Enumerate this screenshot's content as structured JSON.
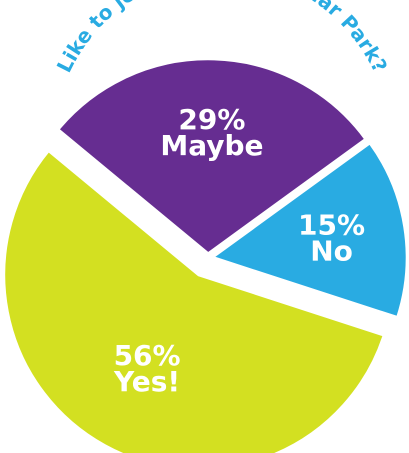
{
  "chart_data": {
    "type": "pie",
    "title": "Like to join Friends of Cedar Park?",
    "title_color": "#29abe2",
    "slices": [
      {
        "label": "Yes!",
        "value": 56,
        "percent_label": "56%",
        "color": "#d3e021"
      },
      {
        "label": "Maybe",
        "value": 29,
        "percent_label": "29%",
        "color": "#662d91"
      },
      {
        "label": "No",
        "value": 15,
        "percent_label": "15%",
        "color": "#29abe2"
      }
    ]
  }
}
